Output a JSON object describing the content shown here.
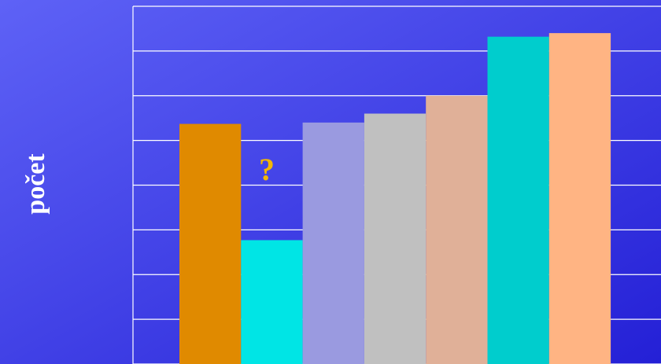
{
  "chart_data": {
    "type": "bar",
    "y_label": "počet",
    "annotation": "?",
    "categories": [
      null,
      null,
      null,
      null,
      null,
      null,
      null
    ],
    "series": [
      {
        "name": null,
        "colors": [
          "#e08a00",
          "#00e5e5",
          "#9a9ae0",
          "#c0c0c0",
          "#e0b098",
          "#00cdcd",
          "#ffb483"
        ],
        "values": [
          5.37,
          2.77,
          5.4,
          5.6,
          6.0,
          7.32,
          7.4
        ]
      }
    ],
    "ylim": [
      0,
      8
    ],
    "yticks": [
      0,
      1,
      2,
      3,
      4,
      5,
      6,
      7,
      8
    ],
    "grid": true
  }
}
